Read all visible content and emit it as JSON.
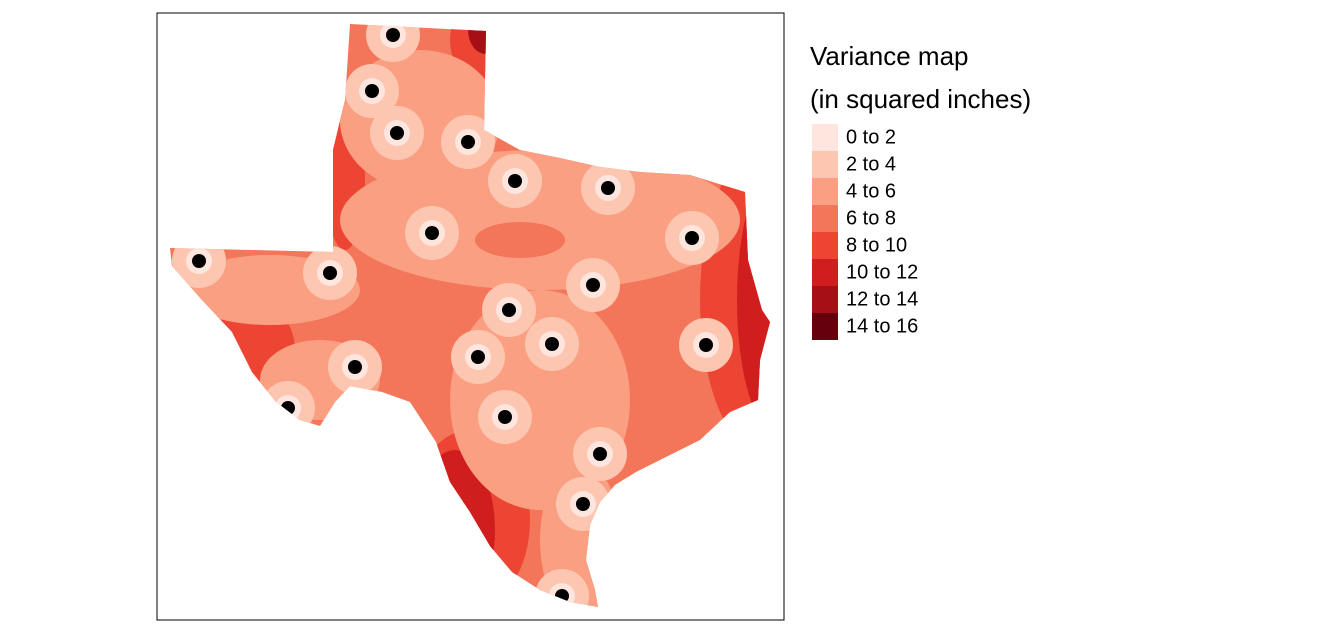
{
  "legend": {
    "title": [
      "Variance map",
      "(in squared inches)"
    ],
    "items": [
      {
        "label": "0 to 2",
        "color": "#fee5de"
      },
      {
        "label": "2 to 4",
        "color": "#fcc6b1"
      },
      {
        "label": "4 to 6",
        "color": "#fa9f82"
      },
      {
        "label": "6 to 8",
        "color": "#f4765a"
      },
      {
        "label": "8 to 10",
        "color": "#ed4534"
      },
      {
        "label": "10 to 12",
        "color": "#d01e1f"
      },
      {
        "label": "12 to 14",
        "color": "#a50f15"
      },
      {
        "label": "14 to 16",
        "color": "#67000d"
      }
    ]
  }
}
